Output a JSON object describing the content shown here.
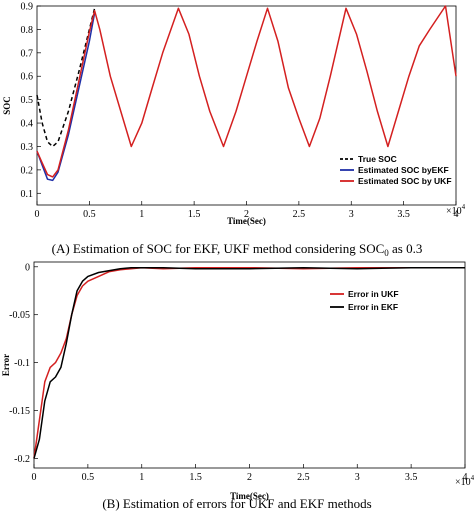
{
  "chart_data": [
    {
      "type": "line",
      "xlabel": "Time(Sec)",
      "ylabel": "SOC",
      "x_exponent": "×10^4",
      "xlim": [
        0,
        4
      ],
      "ylim": [
        0.05,
        0.9
      ],
      "xticks": [
        "0",
        "0.5",
        "1",
        "1.5",
        "2",
        "2.5",
        "3",
        "3.5",
        "4"
      ],
      "yticks": [
        "0.1",
        "0.2",
        "0.3",
        "0.4",
        "0.5",
        "0.6",
        "0.7",
        "0.8",
        "0.9"
      ],
      "legend_position": "bottom-right",
      "caption": "(A)  Estimation of SOC for EKF, UKF method considering SOC",
      "caption_sub": "0",
      "caption_tail": " as 0.3",
      "series": [
        {
          "name": "True SOC",
          "color": "#000000",
          "dash": true,
          "x": [
            0,
            0.05,
            0.1,
            0.15,
            0.2,
            0.3,
            0.4,
            0.5,
            0.55
          ],
          "y": [
            0.52,
            0.4,
            0.32,
            0.3,
            0.32,
            0.45,
            0.62,
            0.8,
            0.89
          ]
        },
        {
          "name": "Estimated SOC byEKF",
          "color": "#1f2fa8",
          "dash": false,
          "x": [
            0,
            0.05,
            0.1,
            0.15,
            0.2,
            0.3,
            0.4,
            0.5,
            0.55
          ],
          "y": [
            0.28,
            0.22,
            0.16,
            0.155,
            0.19,
            0.35,
            0.55,
            0.75,
            0.87
          ]
        },
        {
          "name": "Estimated SOC by UKF",
          "color": "#d42020",
          "dash": false,
          "x": [
            0,
            0.05,
            0.1,
            0.15,
            0.2,
            0.3,
            0.4,
            0.5,
            0.55,
            0.6,
            0.7,
            0.8,
            0.9,
            1.0,
            1.1,
            1.2,
            1.35,
            1.45,
            1.55,
            1.65,
            1.78,
            1.9,
            2.0,
            2.1,
            2.2,
            2.3,
            2.4,
            2.5,
            2.6,
            2.7,
            2.8,
            2.95,
            3.05,
            3.15,
            3.25,
            3.35,
            3.45,
            3.55,
            3.65,
            3.75,
            3.9,
            4.0
          ],
          "y": [
            0.28,
            0.23,
            0.18,
            0.17,
            0.2,
            0.37,
            0.58,
            0.79,
            0.88,
            0.8,
            0.6,
            0.45,
            0.3,
            0.4,
            0.55,
            0.7,
            0.89,
            0.78,
            0.6,
            0.45,
            0.3,
            0.45,
            0.6,
            0.75,
            0.89,
            0.75,
            0.55,
            0.42,
            0.3,
            0.42,
            0.6,
            0.89,
            0.78,
            0.62,
            0.45,
            0.3,
            0.45,
            0.6,
            0.73,
            0.8,
            0.9,
            0.6
          ]
        }
      ]
    },
    {
      "type": "line",
      "xlabel": "Time(Sec)",
      "ylabel": "Error",
      "x_exponent": "×10^4",
      "xlim": [
        0,
        4
      ],
      "ylim": [
        -0.21,
        0.005
      ],
      "xticks": [
        "0",
        "0.5",
        "1",
        "1.5",
        "2",
        "2.5",
        "3",
        "3.5",
        "4"
      ],
      "yticks": [
        "-0.2",
        "-0.15",
        "-0.1",
        "-0.05",
        "0"
      ],
      "legend_position": "top-right",
      "caption": "(B)  Estimation of errors for UKF and EKF methods",
      "series": [
        {
          "name": "Error in UKF",
          "color": "#d42020",
          "x": [
            0,
            0.05,
            0.1,
            0.15,
            0.2,
            0.25,
            0.3,
            0.35,
            0.4,
            0.45,
            0.5,
            0.6,
            0.7,
            0.8,
            0.9,
            1.0,
            1.2,
            1.5,
            2.0,
            2.5,
            3.0,
            3.5,
            4.0
          ],
          "y": [
            -0.2,
            -0.16,
            -0.12,
            -0.105,
            -0.1,
            -0.09,
            -0.075,
            -0.05,
            -0.03,
            -0.02,
            -0.015,
            -0.01,
            -0.005,
            -0.003,
            -0.002,
            -0.001,
            -0.002,
            -0.001,
            -0.001,
            -0.002,
            -0.001,
            -0.001,
            -0.001
          ]
        },
        {
          "name": "Error in EKF",
          "color": "#000000",
          "x": [
            0,
            0.05,
            0.1,
            0.15,
            0.2,
            0.25,
            0.3,
            0.35,
            0.4,
            0.45,
            0.5,
            0.6,
            0.7,
            0.8,
            0.9,
            1.0,
            1.2,
            1.5,
            2.0,
            2.5,
            3.0,
            3.5,
            4.0
          ],
          "y": [
            -0.2,
            -0.18,
            -0.14,
            -0.12,
            -0.115,
            -0.105,
            -0.08,
            -0.05,
            -0.025,
            -0.015,
            -0.01,
            -0.006,
            -0.004,
            -0.002,
            -0.001,
            -0.001,
            -0.001,
            -0.002,
            -0.002,
            -0.001,
            -0.002,
            -0.001,
            -0.001
          ]
        }
      ]
    }
  ]
}
